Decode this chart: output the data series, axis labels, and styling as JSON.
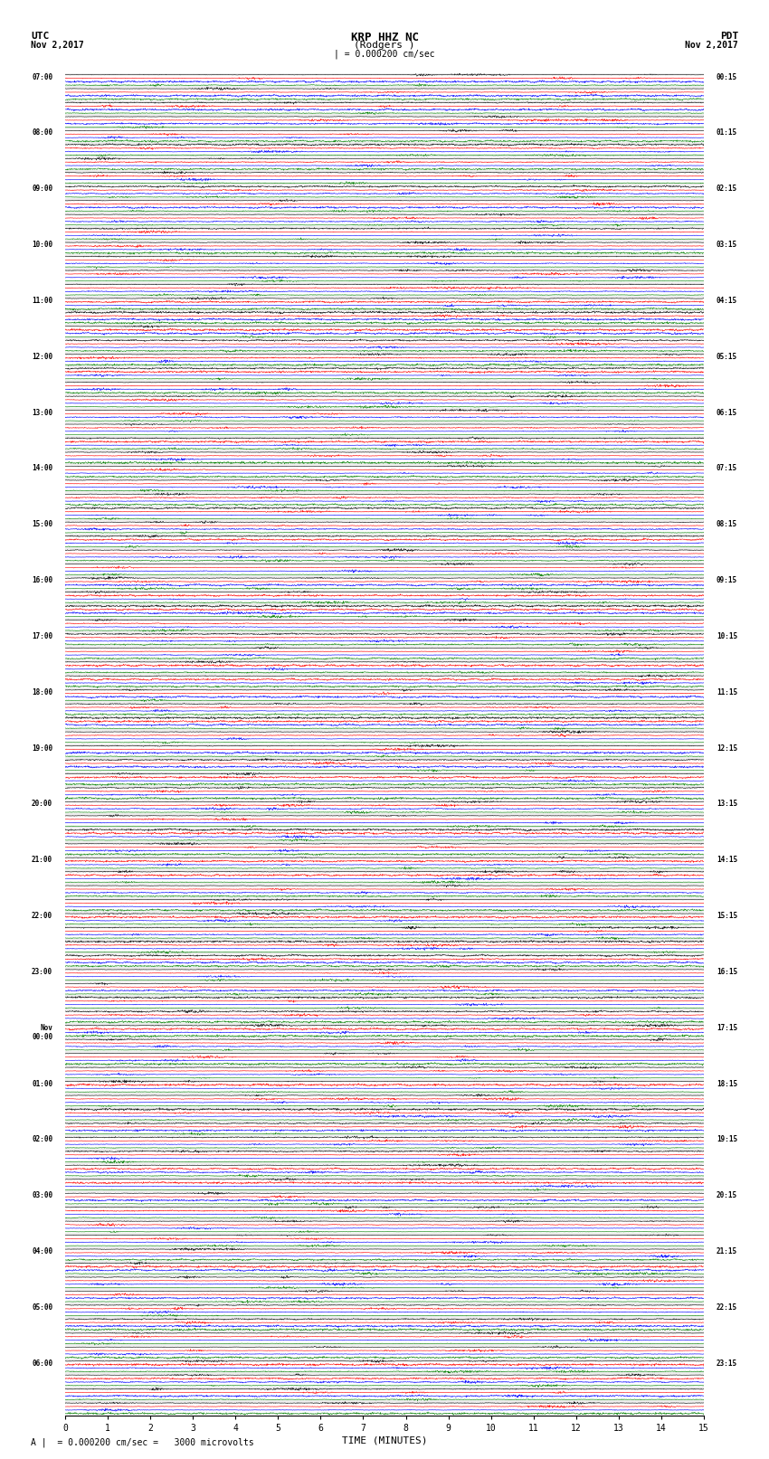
{
  "title_line1": "KRP HHZ NC",
  "title_line2": "(Rodgers )",
  "title_scale": "| = 0.000200 cm/sec",
  "left_header": "UTC",
  "left_date": "Nov 2,2017",
  "right_header": "PDT",
  "right_date": "Nov 2,2017",
  "xlabel": "TIME (MINUTES)",
  "footer": "A |  = 0.000200 cm/sec =   3000 microvolts",
  "utc_times": [
    "07:00",
    "",
    "",
    "",
    "08:00",
    "",
    "",
    "",
    "09:00",
    "",
    "",
    "",
    "10:00",
    "",
    "",
    "",
    "11:00",
    "",
    "",
    "",
    "12:00",
    "",
    "",
    "",
    "13:00",
    "",
    "",
    "",
    "14:00",
    "",
    "",
    "",
    "15:00",
    "",
    "",
    "",
    "16:00",
    "",
    "",
    "",
    "17:00",
    "",
    "",
    "",
    "18:00",
    "",
    "",
    "",
    "19:00",
    "",
    "",
    "",
    "20:00",
    "",
    "",
    "",
    "21:00",
    "",
    "",
    "",
    "22:00",
    "",
    "",
    "",
    "23:00",
    "",
    "",
    "",
    "Nov\n00:00",
    "",
    "",
    "",
    "01:00",
    "",
    "",
    "",
    "02:00",
    "",
    "",
    "",
    "03:00",
    "",
    "",
    "",
    "04:00",
    "",
    "",
    "",
    "05:00",
    "",
    "",
    "",
    "06:00",
    "",
    "",
    ""
  ],
  "pdt_times": [
    "00:15",
    "",
    "",
    "",
    "01:15",
    "",
    "",
    "",
    "02:15",
    "",
    "",
    "",
    "03:15",
    "",
    "",
    "",
    "04:15",
    "",
    "",
    "",
    "05:15",
    "",
    "",
    "",
    "06:15",
    "",
    "",
    "",
    "07:15",
    "",
    "",
    "",
    "08:15",
    "",
    "",
    "",
    "09:15",
    "",
    "",
    "",
    "10:15",
    "",
    "",
    "",
    "11:15",
    "",
    "",
    "",
    "12:15",
    "",
    "",
    "",
    "13:15",
    "",
    "",
    "",
    "14:15",
    "",
    "",
    "",
    "15:15",
    "",
    "",
    "",
    "16:15",
    "",
    "",
    "",
    "17:15",
    "",
    "",
    "",
    "18:15",
    "",
    "",
    "",
    "19:15",
    "",
    "",
    "",
    "20:15",
    "",
    "",
    "",
    "21:15",
    "",
    "",
    "",
    "22:15",
    "",
    "",
    "",
    "23:15",
    "",
    "",
    ""
  ],
  "trace_colors": [
    "black",
    "red",
    "blue",
    "green"
  ],
  "n_rows": 96,
  "n_points": 1800,
  "x_min": 0,
  "x_max": 15,
  "xticks": [
    0,
    1,
    2,
    3,
    4,
    5,
    6,
    7,
    8,
    9,
    10,
    11,
    12,
    13,
    14,
    15
  ],
  "bg_color": "white",
  "seed": 42,
  "fig_width": 8.5,
  "fig_height": 16.13,
  "fig_dpi": 100
}
